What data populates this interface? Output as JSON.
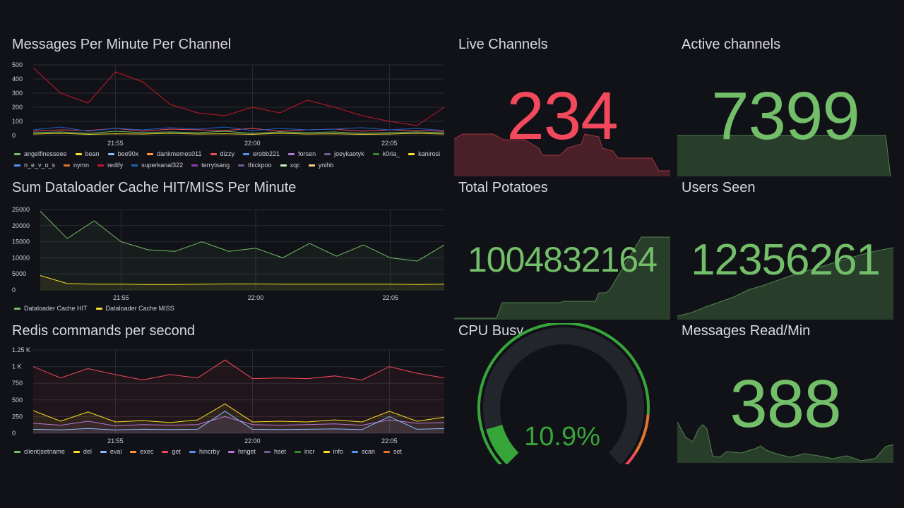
{
  "colors": {
    "background": "#111217",
    "red": "#f2495c",
    "green": "#73bf69",
    "yellow": "#fade2a",
    "grid": "#2a2c33",
    "text": "#ccccdc"
  },
  "panels": {
    "messages": {
      "title": "Messages Per Minute Per Channel",
      "legend": [
        {
          "name": "angelfinesseee",
          "color": "#73bf69"
        },
        {
          "name": "bean",
          "color": "#fade2a"
        },
        {
          "name": "bee90x",
          "color": "#8ab8ff"
        },
        {
          "name": "dankmemes011",
          "color": "#ff9830"
        },
        {
          "name": "dizzy",
          "color": "#f2495c"
        },
        {
          "name": "erobb221",
          "color": "#5794f2"
        },
        {
          "name": "forsen",
          "color": "#b877d9"
        },
        {
          "name": "joeykaotyk",
          "color": "#705da0"
        },
        {
          "name": "k0ria_",
          "color": "#37872d"
        },
        {
          "name": "kanirosi",
          "color": "#fade2a"
        },
        {
          "name": "n_e_v_o_s",
          "color": "#5794f2"
        },
        {
          "name": "nymn",
          "color": "#e0752d"
        },
        {
          "name": "redify",
          "color": "#c4162a"
        },
        {
          "name": "superkanal322",
          "color": "#1f60c4"
        },
        {
          "name": "terrytsang",
          "color": "#8f3bb8"
        },
        {
          "name": "thickpoo",
          "color": "#705da0"
        },
        {
          "name": "xqc",
          "color": "#c8f2c2"
        },
        {
          "name": "ynihb",
          "color": "#ffcb7d"
        }
      ],
      "yticks": [
        "500",
        "400",
        "300",
        "200",
        "100",
        "0"
      ],
      "xticks": [
        "21:55",
        "22:00",
        "22:05"
      ]
    },
    "cache": {
      "title": "Sum Dataloader Cache HIT/MISS Per Minute",
      "legend": [
        {
          "name": "Dataloader Cache HIT",
          "color": "#73bf69"
        },
        {
          "name": "Dataloader Cache MISS",
          "color": "#fade2a"
        }
      ],
      "yticks": [
        "25000",
        "20000",
        "15000",
        "10000",
        "5000",
        "0"
      ],
      "xticks": [
        "21:55",
        "22:00",
        "22:05"
      ]
    },
    "redis": {
      "title": "Redis commands per second",
      "legend": [
        {
          "name": "client|setname",
          "color": "#73bf69"
        },
        {
          "name": "del",
          "color": "#fade2a"
        },
        {
          "name": "eval",
          "color": "#8ab8ff"
        },
        {
          "name": "exec",
          "color": "#ff9830"
        },
        {
          "name": "get",
          "color": "#f2495c"
        },
        {
          "name": "hincrby",
          "color": "#5794f2"
        },
        {
          "name": "hmget",
          "color": "#b877d9"
        },
        {
          "name": "hset",
          "color": "#705da0"
        },
        {
          "name": "incr",
          "color": "#37872d"
        },
        {
          "name": "info",
          "color": "#fade2a"
        },
        {
          "name": "scan",
          "color": "#5794f2"
        },
        {
          "name": "set",
          "color": "#e0752d"
        }
      ],
      "yticks": [
        "1.25 K",
        "1 K",
        "750",
        "500",
        "250",
        "0"
      ],
      "xticks": [
        "21:55",
        "22:00",
        "22:05"
      ]
    },
    "live_channels": {
      "title": "Live Channels",
      "value": "234",
      "color": "#f2495c"
    },
    "active_channels": {
      "title": "Active channels",
      "value": "7399",
      "color": "#73bf69"
    },
    "total_potatoes": {
      "title": "Total Potatoes",
      "value": "1004832164",
      "color": "#73bf69"
    },
    "users_seen": {
      "title": "Users Seen",
      "value": "12356261",
      "color": "#73bf69"
    },
    "cpu_busy": {
      "title": "CPU Busy",
      "value": "10.9%",
      "percent": 10.9,
      "color": "#37a63a"
    },
    "messages_read": {
      "title": "Messages Read/Min",
      "value": "388",
      "color": "#73bf69"
    }
  },
  "chart_data": [
    {
      "type": "line",
      "title": "Messages Per Minute Per Channel",
      "x": [
        "21:52",
        "21:53",
        "21:54",
        "21:55",
        "21:56",
        "21:57",
        "21:58",
        "21:59",
        "22:00",
        "22:01",
        "22:02",
        "22:03",
        "22:04",
        "22:05",
        "22:06",
        "22:07"
      ],
      "ylim": [
        0,
        500
      ],
      "series": [
        {
          "name": "redify",
          "values": [
            480,
            300,
            230,
            450,
            380,
            220,
            160,
            140,
            200,
            160,
            250,
            200,
            140,
            100,
            70,
            200
          ]
        },
        {
          "name": "dizzy",
          "values": [
            30,
            40,
            35,
            50,
            30,
            45,
            40,
            35,
            50,
            30,
            40,
            45,
            30,
            40,
            35,
            30
          ]
        },
        {
          "name": "superkanal322",
          "values": [
            40,
            60,
            30,
            50,
            40,
            55,
            45,
            60,
            35,
            50,
            40,
            45,
            55,
            40,
            50,
            35
          ]
        },
        {
          "name": "angelfinesseee",
          "values": [
            20,
            25,
            15,
            30,
            20,
            25,
            20,
            30,
            15,
            25,
            20,
            25,
            15,
            20,
            25,
            20
          ]
        },
        {
          "name": "bean",
          "values": [
            10,
            15,
            8,
            12,
            10,
            15,
            10,
            12,
            8,
            15,
            10,
            12,
            8,
            10,
            15,
            10
          ]
        }
      ]
    },
    {
      "type": "area",
      "title": "Sum Dataloader Cache HIT/MISS Per Minute",
      "x": [
        "21:52",
        "21:53",
        "21:54",
        "21:55",
        "21:56",
        "21:57",
        "21:58",
        "21:59",
        "22:00",
        "22:01",
        "22:02",
        "22:03",
        "22:04",
        "22:05",
        "22:06",
        "22:07"
      ],
      "ylim": [
        0,
        25000
      ],
      "series": [
        {
          "name": "Dataloader Cache HIT",
          "values": [
            24500,
            16000,
            21500,
            15000,
            12500,
            12000,
            15000,
            12000,
            13000,
            10000,
            14500,
            10500,
            14000,
            10000,
            9000,
            14000
          ]
        },
        {
          "name": "Dataloader Cache MISS",
          "values": [
            4500,
            2000,
            1800,
            1800,
            1700,
            1700,
            1800,
            1900,
            1900,
            1800,
            1800,
            1800,
            1800,
            1800,
            1700,
            1800
          ]
        }
      ]
    },
    {
      "type": "area",
      "title": "Redis commands per second",
      "x": [
        "21:52",
        "21:53",
        "21:54",
        "21:55",
        "21:56",
        "21:57",
        "21:58",
        "21:59",
        "22:00",
        "22:01",
        "22:02",
        "22:03",
        "22:04",
        "22:05",
        "22:06",
        "22:07"
      ],
      "ylim": [
        0,
        1250
      ],
      "series": [
        {
          "name": "get",
          "values": [
            1000,
            830,
            970,
            880,
            800,
            880,
            830,
            1100,
            820,
            830,
            820,
            860,
            800,
            1000,
            900,
            830
          ]
        },
        {
          "name": "del",
          "values": [
            340,
            180,
            320,
            170,
            190,
            160,
            200,
            440,
            170,
            180,
            170,
            200,
            170,
            330,
            180,
            240
          ]
        },
        {
          "name": "hmget",
          "values": [
            150,
            120,
            180,
            110,
            130,
            120,
            130,
            250,
            130,
            120,
            130,
            140,
            120,
            200,
            150,
            160
          ]
        },
        {
          "name": "eval",
          "values": [
            60,
            50,
            70,
            50,
            60,
            55,
            60,
            330,
            60,
            55,
            60,
            65,
            55,
            250,
            60,
            70
          ]
        }
      ]
    }
  ]
}
